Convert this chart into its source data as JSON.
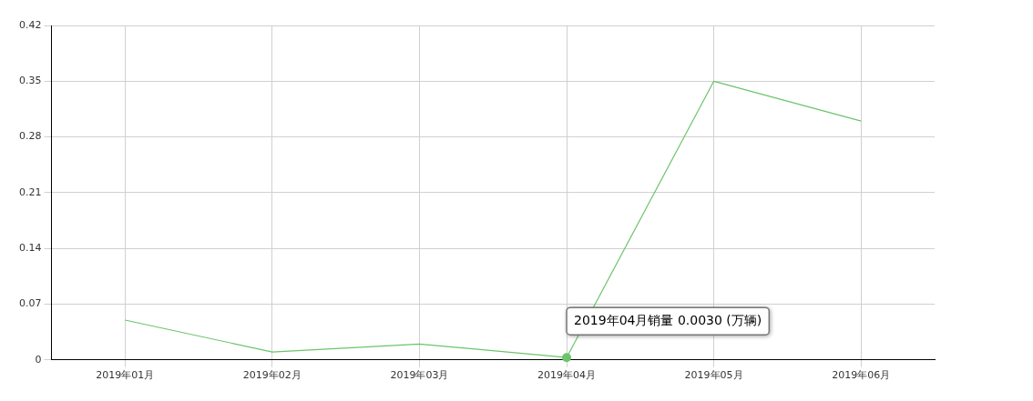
{
  "chart_data": {
    "type": "line",
    "categories": [
      "2019年01月",
      "2019年02月",
      "2019年03月",
      "2019年04月",
      "2019年05月",
      "2019年06月"
    ],
    "series": [
      {
        "color": "#6cc46c",
        "values": [
          0.05,
          0.01,
          0.02,
          0.003,
          0.35,
          0.3
        ]
      }
    ],
    "ylim": [
      0,
      0.42
    ],
    "yticks": [
      0,
      0.07,
      0.14,
      0.21,
      0.28,
      0.35,
      0.42
    ],
    "grid": true,
    "legend": false,
    "marker": "none",
    "line_style": "solid",
    "annotations": [
      {
        "text": "2019年04月销量 0.0030 (万辆)",
        "x": "2019年04月",
        "y": 0.003
      }
    ]
  }
}
